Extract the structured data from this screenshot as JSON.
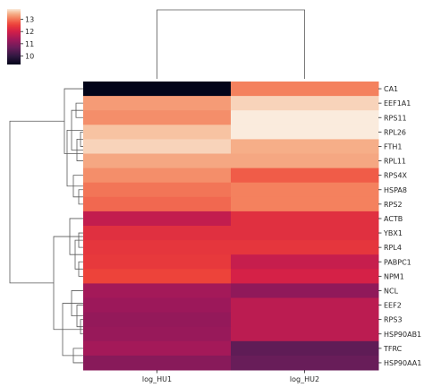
{
  "chart_data": {
    "type": "heatmap",
    "title": "",
    "xlabel": "",
    "ylabel": "",
    "columns": [
      "log_HU1",
      "log_HU2"
    ],
    "rows": [
      "CA1",
      "EEF1A1",
      "RPS11",
      "RPL26",
      "FTH1",
      "RPL11",
      "RPS4X",
      "HSPA8",
      "RPS2",
      "ACTB",
      "YBX1",
      "RPL4",
      "PABPC1",
      "NPM1",
      "NCL",
      "EEF2",
      "RPS3",
      "HSP90AB1",
      "TFRC",
      "HSP90AA1"
    ],
    "values": [
      [
        9.3,
        13.1
      ],
      [
        13.3,
        13.7
      ],
      [
        13.2,
        13.85
      ],
      [
        13.6,
        13.85
      ],
      [
        13.7,
        13.45
      ],
      [
        13.4,
        13.4
      ],
      [
        13.2,
        12.8
      ],
      [
        13.0,
        13.1
      ],
      [
        12.9,
        13.1
      ],
      [
        11.8,
        12.3
      ],
      [
        12.3,
        12.3
      ],
      [
        12.4,
        12.4
      ],
      [
        12.45,
        11.85
      ],
      [
        12.6,
        12.05
      ],
      [
        11.4,
        11.15
      ],
      [
        11.3,
        11.7
      ],
      [
        11.2,
        11.7
      ],
      [
        11.25,
        11.7
      ],
      [
        11.4,
        10.55
      ],
      [
        11.05,
        10.65
      ]
    ],
    "colorbar": {
      "ticks": [
        10,
        11,
        12,
        13
      ],
      "range": [
        9.3,
        13.85
      ],
      "colormap": "rocket"
    },
    "dendrogram_rows": true,
    "dendrogram_columns": true
  }
}
